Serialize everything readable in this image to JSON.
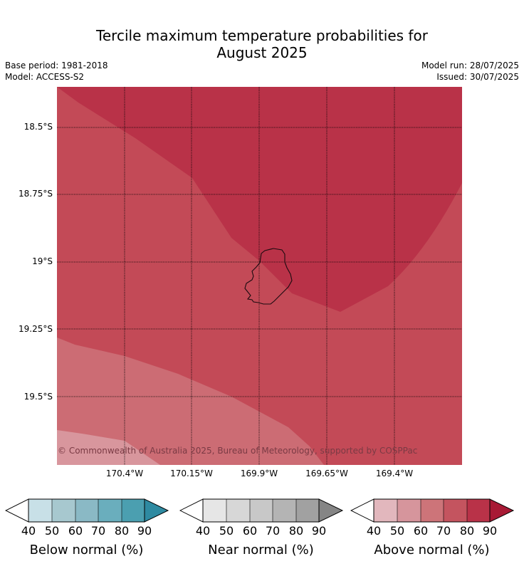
{
  "title_line1": "Tercile maximum temperature probabilities for",
  "title_line2": "August 2025",
  "base_period": "Base period: 1981-2018",
  "model": "Model: ACCESS-S2",
  "model_run": "Model run: 28/07/2025",
  "issued": "Issued: 30/07/2025",
  "map": {
    "lat_labels": [
      "18.5°S",
      "18.75°S",
      "19°S",
      "19.25°S",
      "19.5°S"
    ],
    "lon_labels": [
      "170.4°W",
      "170.15°W",
      "169.9°W",
      "169.65°W",
      "169.4°W"
    ],
    "copyright": "© Commonwealth of Australia 2025, Bureau of Meteorology, supported by COSPPac",
    "colors": {
      "above_80_90": "#b93248",
      "above_70_80": "#c34a57",
      "above_60_70": "#cc6c74",
      "above_50_60": "#d8969d"
    }
  },
  "legends": [
    {
      "title": "Below normal (%)",
      "ticks": [
        "40",
        "50",
        "60",
        "70",
        "80",
        "90"
      ],
      "colors": [
        "#c8e0e7",
        "#a7c8cf",
        "#8ab9c5",
        "#6aaebd",
        "#4b9fb0",
        "#2e8aa1"
      ]
    },
    {
      "title": "Near normal (%)",
      "ticks": [
        "40",
        "50",
        "60",
        "70",
        "80",
        "90"
      ],
      "colors": [
        "#e6e6e6",
        "#d7d7d7",
        "#c8c8c8",
        "#b4b4b4",
        "#a1a1a1",
        "#858585"
      ]
    },
    {
      "title": "Above normal (%)",
      "ticks": [
        "40",
        "50",
        "60",
        "70",
        "80",
        "90"
      ],
      "colors": [
        "#e2b7bd",
        "#d6959c",
        "#cd7479",
        "#c4545f",
        "#b93248",
        "#a81a35"
      ]
    }
  ]
}
